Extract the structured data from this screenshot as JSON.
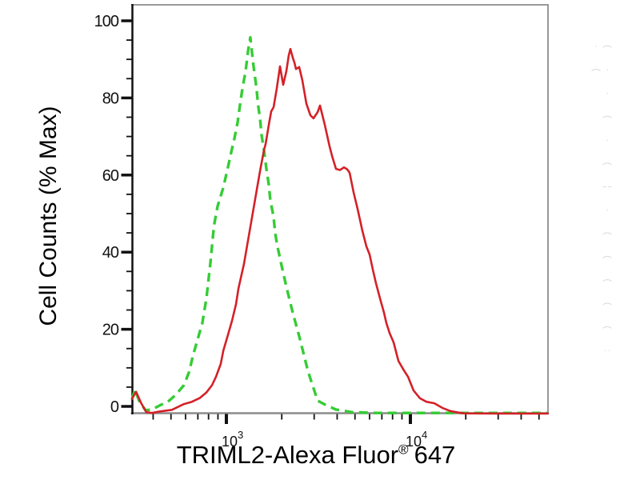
{
  "figure": {
    "kind": "flow cytometry overlay histogram",
    "background": "#ffffff"
  },
  "axes": {
    "y": {
      "title": "Cell Counts (% Max)",
      "min": 0,
      "max": 100,
      "major_ticks": [
        0,
        20,
        40,
        60,
        80,
        100
      ],
      "tick_labels": [
        "0",
        "20",
        "40",
        "60",
        "80",
        "100"
      ],
      "minor_tick_step": 5
    },
    "x": {
      "title_main": "TRIML2-Alexa Fluor",
      "title_reg": "®",
      "title_suffix": "647",
      "scale": "log10",
      "major_ticks": [
        {
          "value": 1000,
          "mantissa": "10",
          "exponent": "3"
        },
        {
          "value": 10000,
          "mantissa": "10",
          "exponent": "4"
        }
      ],
      "minor_ticks": [
        400,
        500,
        600,
        700,
        800,
        900,
        2000,
        3000,
        4000,
        5000,
        6000,
        7000,
        8000,
        9000,
        20000,
        30000,
        40000,
        50000
      ]
    }
  },
  "chart_data": {
    "type": "line",
    "title": "",
    "xlabel": "TRIML2-Alexa Fluor® 647",
    "ylabel": "Cell Counts (% Max)",
    "x_scale": "log10",
    "x_range": [
      307,
      55963
    ],
    "y_display_range": [
      -2,
      104
    ],
    "grid": false,
    "legend": "none",
    "series": [
      {
        "name": "green-dashed-histogram",
        "color": "#35cc35",
        "line_style": "dashed",
        "peak": {
          "x": 1350,
          "y": 95.7
        },
        "points": [
          [
            307,
            1.8
          ],
          [
            318,
            4.3
          ],
          [
            339,
            1.0
          ],
          [
            364,
            -1.0
          ],
          [
            394,
            -0.8
          ],
          [
            436,
            0.3
          ],
          [
            481,
            1.2
          ],
          [
            531,
            3.0
          ],
          [
            588,
            5.5
          ],
          [
            628,
            9.0
          ],
          [
            657,
            13.0
          ],
          [
            694,
            17.0
          ],
          [
            740,
            21.6
          ],
          [
            779,
            28.0
          ],
          [
            818,
            37.0
          ],
          [
            857,
            46.9
          ],
          [
            896,
            51.9
          ],
          [
            963,
            56.8
          ],
          [
            1020,
            62.0
          ],
          [
            1063,
            66.0
          ],
          [
            1106,
            69.5
          ],
          [
            1151,
            73.6
          ],
          [
            1186,
            78.2
          ],
          [
            1222,
            82.4
          ],
          [
            1272,
            86.9
          ],
          [
            1311,
            92.1
          ],
          [
            1350,
            95.7
          ],
          [
            1402,
            88.6
          ],
          [
            1459,
            82.4
          ],
          [
            1487,
            78.2
          ],
          [
            1523,
            74.7
          ],
          [
            1552,
            70.5
          ],
          [
            1601,
            66.4
          ],
          [
            1650,
            61.6
          ],
          [
            1700,
            57.5
          ],
          [
            1735,
            53.3
          ],
          [
            1805,
            49.2
          ],
          [
            1841,
            45.0
          ],
          [
            1895,
            41.5
          ],
          [
            1992,
            36.7
          ],
          [
            2119,
            31.0
          ],
          [
            2275,
            25.0
          ],
          [
            2512,
            17.4
          ],
          [
            2778,
            9.1
          ],
          [
            3131,
            1.5
          ],
          [
            3460,
            0.4
          ],
          [
            3940,
            -0.8
          ],
          [
            4800,
            -1.5
          ],
          [
            6500,
            -1.7
          ],
          [
            15000,
            -1.7
          ],
          [
            30000,
            -1.7
          ],
          [
            55900,
            -1.7
          ]
        ]
      },
      {
        "name": "red-solid-histogram",
        "color": "#d42128",
        "line_style": "solid",
        "peak": {
          "x": 2228,
          "y": 92.7
        },
        "points": [
          [
            307,
            2.0
          ],
          [
            323,
            3.8
          ],
          [
            343,
            1.0
          ],
          [
            367,
            -1.5
          ],
          [
            394,
            -1.7
          ],
          [
            436,
            -1.3
          ],
          [
            506,
            -0.9
          ],
          [
            588,
            0.6
          ],
          [
            650,
            1.2
          ],
          [
            718,
            2.2
          ],
          [
            779,
            3.6
          ],
          [
            835,
            5.5
          ],
          [
            878,
            7.7
          ],
          [
            932,
            11.0
          ],
          [
            963,
            14.5
          ],
          [
            1020,
            18.5
          ],
          [
            1073,
            22.2
          ],
          [
            1128,
            26.5
          ],
          [
            1162,
            30.5
          ],
          [
            1247,
            37.0
          ],
          [
            1311,
            43.0
          ],
          [
            1378,
            49.0
          ],
          [
            1449,
            55.0
          ],
          [
            1523,
            61.0
          ],
          [
            1601,
            66.5
          ],
          [
            1633,
            68.0
          ],
          [
            1700,
            73.0
          ],
          [
            1752,
            76.5
          ],
          [
            1805,
            77.6
          ],
          [
            1879,
            82.5
          ],
          [
            1956,
            88.2
          ],
          [
            2036,
            83.4
          ],
          [
            2119,
            87.0
          ],
          [
            2183,
            91.0
          ],
          [
            2228,
            92.7
          ],
          [
            2295,
            90.5
          ],
          [
            2342,
            89.2
          ],
          [
            2389,
            87.5
          ],
          [
            2487,
            88.0
          ],
          [
            2588,
            84.5
          ],
          [
            2721,
            78.5
          ],
          [
            2861,
            75.5
          ],
          [
            2977,
            74.7
          ],
          [
            3131,
            76.3
          ],
          [
            3227,
            78.0
          ],
          [
            3426,
            73.0
          ],
          [
            3639,
            67.4
          ],
          [
            3750,
            65.0
          ],
          [
            3941,
            61.6
          ],
          [
            4143,
            61.3
          ],
          [
            4357,
            62.0
          ],
          [
            4534,
            61.5
          ],
          [
            4672,
            60.6
          ],
          [
            4913,
            55.5
          ],
          [
            5164,
            51.2
          ],
          [
            5483,
            45.6
          ],
          [
            5767,
            41.5
          ],
          [
            6002,
            39.4
          ],
          [
            6247,
            35.5
          ],
          [
            6502,
            31.9
          ],
          [
            6835,
            28.0
          ],
          [
            7187,
            24.3
          ],
          [
            7406,
            21.6
          ],
          [
            7709,
            19.0
          ],
          [
            8103,
            16.6
          ],
          [
            8605,
            11.8
          ],
          [
            9230,
            9.3
          ],
          [
            9705,
            7.7
          ],
          [
            10408,
            4.1
          ],
          [
            11278,
            2.1
          ],
          [
            12218,
            1.2
          ],
          [
            13506,
            0.8
          ],
          [
            14928,
            -0.4
          ],
          [
            16500,
            -1.2
          ],
          [
            18239,
            -1.6
          ],
          [
            19560,
            -1.8
          ],
          [
            30000,
            -1.85
          ],
          [
            45000,
            -1.85
          ],
          [
            55900,
            -1.85
          ]
        ]
      }
    ]
  },
  "colors": {
    "axis_black": "#111111",
    "frame_gray": "#999999",
    "baseline_gray": "#8c8c8c",
    "green_curve": "#35cc35",
    "red_curve": "#d42128"
  },
  "watermark": {
    "text": "( · · ( · ( ¦ · ( ( ( ( ( : · (",
    "color": "#d9d9d9"
  }
}
